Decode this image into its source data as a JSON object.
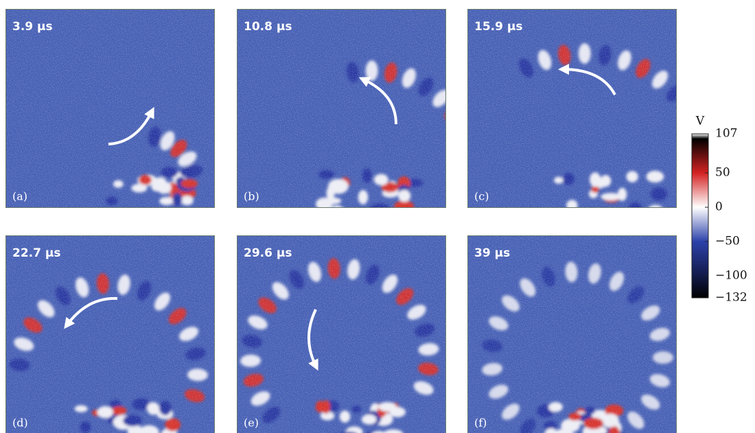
{
  "panels": [
    {
      "time": "3.9 µs",
      "label": "(a)"
    },
    {
      "time": "10.8 µs",
      "label": "(b)"
    },
    {
      "time": "15.9 µs",
      "label": "(c)"
    },
    {
      "time": "22.7 µs",
      "label": "(d)"
    },
    {
      "time": "29.6 µs",
      "label": "(e)"
    },
    {
      "time": "39 µs",
      "label": "(f)"
    }
  ],
  "colorbar": {
    "title": "V",
    "lim": [
      -132,
      107
    ],
    "ticks": [
      107,
      50,
      0,
      {
        "value": -50,
        "label": "−50"
      },
      {
        "value": -100,
        "label": "−100"
      },
      {
        "value": -132,
        "label": "−132"
      }
    ]
  }
}
